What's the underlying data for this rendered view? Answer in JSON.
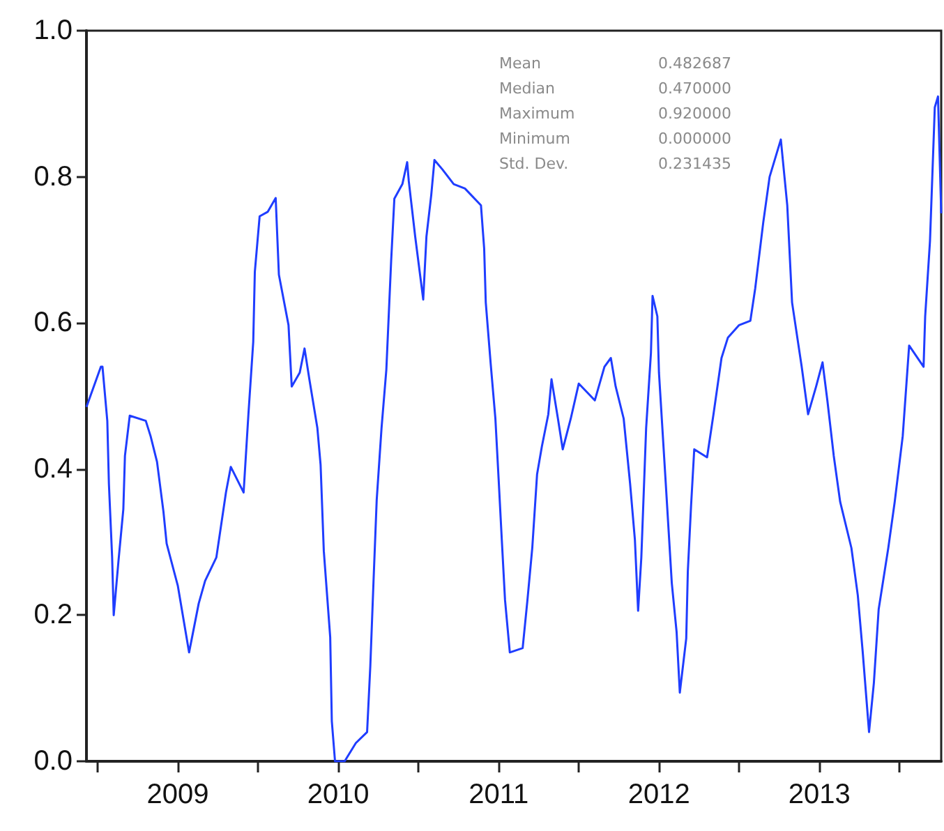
{
  "chart_data": {
    "type": "line",
    "x": [
      2008.93,
      2009.02,
      2009.03,
      2009.06,
      2009.07,
      2009.09,
      2009.1,
      2009.13,
      2009.16,
      2009.17,
      2009.2,
      2009.3,
      2009.33,
      2009.37,
      2009.41,
      2009.43,
      2009.5,
      2009.57,
      2009.63,
      2009.67,
      2009.74,
      2009.8,
      2009.83,
      2009.91,
      2009.94,
      2009.97,
      2009.98,
      2010.01,
      2010.06,
      2010.11,
      2010.13,
      2010.19,
      2010.21,
      2010.26,
      2010.29,
      2010.32,
      2010.37,
      2010.39,
      2010.41,
      2010.45,
      2010.46,
      2010.48,
      2010.54,
      2010.61,
      2010.68,
      2010.7,
      2010.72,
      2010.74,
      2010.77,
      2010.8,
      2010.83,
      2010.85,
      2010.9,
      2010.93,
      2010.94,
      2010.98,
      2011.03,
      2011.05,
      2011.08,
      2011.1,
      2011.15,
      2011.22,
      2011.29,
      2011.39,
      2011.41,
      2011.42,
      2011.45,
      2011.48,
      2011.5,
      2011.52,
      2011.54,
      2011.57,
      2011.65,
      2011.68,
      2011.71,
      2011.74,
      2011.77,
      2011.81,
      2011.83,
      2011.87,
      2011.9,
      2011.95,
      2012.0,
      2012.1,
      2012.16,
      2012.2,
      2012.23,
      2012.28,
      2012.32,
      2012.35,
      2012.37,
      2012.39,
      2012.42,
      2012.45,
      2012.46,
      2012.49,
      2012.5,
      2012.54,
      2012.58,
      2012.61,
      2012.63,
      2012.67,
      2012.68,
      2012.7,
      2012.72,
      2012.8,
      2012.84,
      2012.89,
      2012.93,
      2013.0,
      2013.07,
      2013.1,
      2013.15,
      2013.19,
      2013.26,
      2013.3,
      2013.33,
      2013.39,
      2013.43,
      2013.48,
      2013.52,
      2013.55,
      2013.59,
      2013.63,
      2013.7,
      2013.74,
      2013.77,
      2013.81,
      2013.84,
      2013.87,
      2013.93,
      2013.97,
      2014.02,
      2014.06,
      2014.15,
      2014.16,
      2014.19,
      2014.22,
      2014.24,
      2014.26
    ],
    "series": [
      {
        "color": "#1f3dff",
        "values": [
          0.485,
          0.54,
          0.54,
          0.466,
          0.38,
          0.28,
          0.2,
          0.275,
          0.345,
          0.418,
          0.473,
          0.466,
          0.445,
          0.41,
          0.342,
          0.298,
          0.24,
          0.149,
          0.216,
          0.247,
          0.279,
          0.368,
          0.403,
          0.368,
          0.475,
          0.574,
          0.67,
          0.746,
          0.752,
          0.771,
          0.666,
          0.597,
          0.513,
          0.532,
          0.565,
          0.523,
          0.456,
          0.406,
          0.288,
          0.17,
          0.055,
          0.0,
          0.0,
          0.025,
          0.04,
          0.13,
          0.246,
          0.358,
          0.456,
          0.536,
          0.685,
          0.77,
          0.79,
          0.82,
          0.794,
          0.718,
          0.632,
          0.718,
          0.775,
          0.823,
          0.81,
          0.79,
          0.784,
          0.761,
          0.702,
          0.628,
          0.546,
          0.469,
          0.387,
          0.303,
          0.221,
          0.149,
          0.155,
          0.221,
          0.292,
          0.393,
          0.431,
          0.475,
          0.523,
          0.469,
          0.427,
          0.469,
          0.517,
          0.494,
          0.54,
          0.552,
          0.513,
          0.469,
          0.38,
          0.303,
          0.206,
          0.279,
          0.456,
          0.559,
          0.637,
          0.609,
          0.532,
          0.389,
          0.244,
          0.177,
          0.094,
          0.168,
          0.26,
          0.349,
          0.427,
          0.416,
          0.475,
          0.552,
          0.58,
          0.597,
          0.603,
          0.647,
          0.737,
          0.8,
          0.851,
          0.761,
          0.628,
          0.54,
          0.475,
          0.513,
          0.546,
          0.494,
          0.418,
          0.355,
          0.292,
          0.227,
          0.151,
          0.04,
          0.107,
          0.208,
          0.292,
          0.355,
          0.445,
          0.569,
          0.54,
          0.609,
          0.712,
          0.895,
          0.91,
          0.75
        ]
      }
    ],
    "xlim": [
      2008.93,
      2014.26
    ],
    "xticks": [
      {
        "value": 2009,
        "label": null
      },
      {
        "value": 2009.5,
        "label": "2009"
      },
      {
        "value": 2010,
        "label": null
      },
      {
        "value": 2010.5,
        "label": "2010"
      },
      {
        "value": 2011,
        "label": null
      },
      {
        "value": 2011.5,
        "label": "2011"
      },
      {
        "value": 2012,
        "label": null
      },
      {
        "value": 2012.5,
        "label": "2012"
      },
      {
        "value": 2013,
        "label": null
      },
      {
        "value": 2013.5,
        "label": "2013"
      },
      {
        "value": 2014,
        "label": null
      }
    ],
    "ylim": [
      0,
      1
    ],
    "yticks": [
      {
        "value": 0,
        "label": "0.0"
      },
      {
        "value": 0.2,
        "label": "0.2"
      },
      {
        "value": 0.4,
        "label": "0.4"
      },
      {
        "value": 0.6,
        "label": "0.6"
      },
      {
        "value": 0.8,
        "label": "0.8"
      },
      {
        "value": 1,
        "label": "1.0"
      }
    ],
    "annotations": [
      "Mean",
      "0.482687",
      "Median",
      "0.470000",
      "Maximum",
      "0.920000",
      "Minimum",
      "0.000000",
      "Std. Dev.",
      "0.231435"
    ],
    "grid": false,
    "marker": "none",
    "line_style": "solid"
  }
}
